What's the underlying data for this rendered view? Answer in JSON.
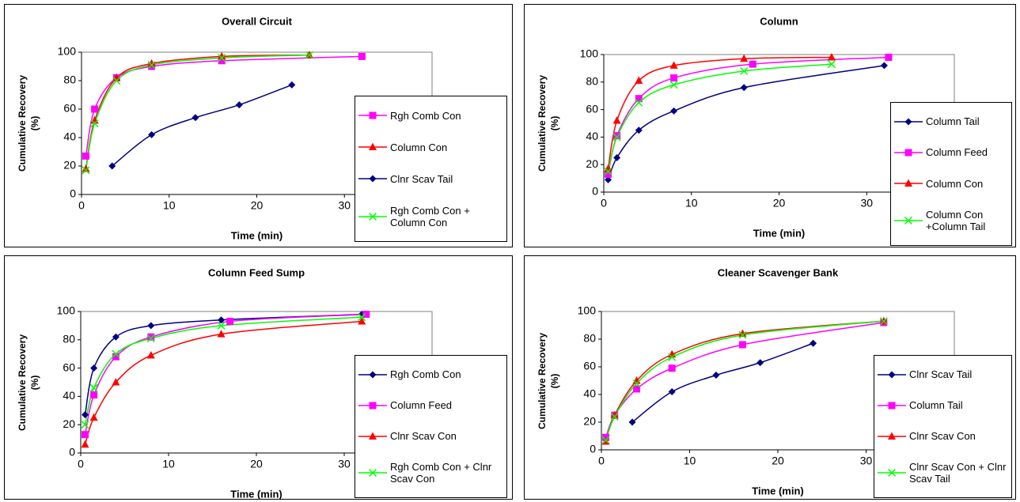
{
  "chart_data": [
    {
      "type": "line",
      "title": "Overall Circuit",
      "x_label": "Time (min)",
      "y_label": "Cumulative Recovery (%)",
      "xlim": [
        0,
        40
      ],
      "xticks": [
        0,
        10,
        20,
        30
      ],
      "ylim": [
        0,
        100
      ],
      "yticks": [
        0,
        20,
        40,
        60,
        80,
        100
      ],
      "series": [
        {
          "name": "Rgh Comb Con",
          "color": "#ff00ff",
          "marker": "square",
          "x": [
            0.5,
            1.5,
            4,
            8,
            16,
            32
          ],
          "values": [
            27,
            60,
            82,
            90,
            94,
            97
          ]
        },
        {
          "name": "Column Con",
          "color": "#ff0000",
          "marker": "triangle",
          "x": [
            0.5,
            1.5,
            4,
            8,
            16,
            26
          ],
          "values": [
            18,
            52,
            82,
            92,
            97,
            98
          ]
        },
        {
          "name": "Clnr Scav Tail",
          "color": "#000080",
          "marker": "diamond",
          "x": [
            3.5,
            8,
            13,
            18,
            24
          ],
          "values": [
            20,
            42,
            54,
            63,
            77
          ]
        },
        {
          "name": "Rgh Comb Con + Column Con",
          "color": "#00ff00",
          "marker": "x",
          "x": [
            0.5,
            1.5,
            4,
            8,
            16,
            26
          ],
          "values": [
            17,
            50,
            80,
            91,
            96,
            98
          ]
        }
      ]
    },
    {
      "type": "line",
      "title": "Column",
      "x_label": "Time (min)",
      "y_label": "Cumulative Recovery (%)",
      "xlim": [
        0,
        40
      ],
      "xticks": [
        0,
        10,
        20,
        30
      ],
      "ylim": [
        0,
        100
      ],
      "yticks": [
        0,
        20,
        40,
        60,
        80,
        100
      ],
      "series": [
        {
          "name": "Column Tail",
          "color": "#000080",
          "marker": "diamond",
          "x": [
            0.5,
            1.5,
            4,
            8,
            16,
            32
          ],
          "values": [
            9,
            25,
            45,
            59,
            76,
            92
          ]
        },
        {
          "name": "Column Feed",
          "color": "#ff00ff",
          "marker": "square",
          "x": [
            0.5,
            1.5,
            4,
            8,
            17,
            32.5
          ],
          "values": [
            13,
            41,
            68,
            83,
            93,
            98
          ]
        },
        {
          "name": "Column Con",
          "color": "#ff0000",
          "marker": "triangle",
          "x": [
            0.5,
            1.5,
            4,
            8,
            16,
            26
          ],
          "values": [
            17,
            52,
            81,
            92,
            97,
            98
          ]
        },
        {
          "name": "Column Con +Column Tail",
          "color": "#00ff00",
          "marker": "x",
          "x": [
            0.5,
            1.5,
            4,
            8,
            16,
            26
          ],
          "values": [
            15,
            40,
            65,
            78,
            88,
            93
          ]
        }
      ]
    },
    {
      "type": "line",
      "title": "Column Feed Sump",
      "x_label": "Time (min)",
      "y_label": "Cumulative Recovery (%)",
      "xlim": [
        0,
        40
      ],
      "xticks": [
        0,
        10,
        20,
        30
      ],
      "ylim": [
        0,
        100
      ],
      "yticks": [
        0,
        20,
        40,
        60,
        80,
        100
      ],
      "series": [
        {
          "name": "Rgh Comb Con",
          "color": "#000080",
          "marker": "diamond",
          "x": [
            0.5,
            1.5,
            4,
            8,
            16,
            32
          ],
          "values": [
            27,
            60,
            82,
            90,
            94,
            98
          ]
        },
        {
          "name": "Column Feed",
          "color": "#ff00ff",
          "marker": "square",
          "x": [
            0.5,
            1.5,
            4,
            8,
            17,
            32.5
          ],
          "values": [
            13,
            41,
            68,
            82,
            93,
            98
          ]
        },
        {
          "name": "Clnr Scav Con",
          "color": "#ff0000",
          "marker": "triangle",
          "x": [
            0.5,
            1.5,
            4,
            8,
            16,
            32
          ],
          "values": [
            6,
            25,
            50,
            69,
            84,
            93
          ]
        },
        {
          "name": "Rgh Comb Con + Clnr Scav Con",
          "color": "#00ff00",
          "marker": "x",
          "x": [
            0.5,
            1.5,
            4,
            8,
            16,
            32
          ],
          "values": [
            20,
            46,
            70,
            81,
            90,
            96
          ]
        }
      ]
    },
    {
      "type": "line",
      "title": "Cleaner Scavenger Bank",
      "x_label": "Time (min)",
      "y_label": "Cumulative Recovery (%)",
      "xlim": [
        0,
        40
      ],
      "xticks": [
        0,
        10,
        20,
        30
      ],
      "ylim": [
        0,
        100
      ],
      "yticks": [
        0,
        20,
        40,
        60,
        80,
        100
      ],
      "series": [
        {
          "name": "Clnr Scav Tail",
          "color": "#000080",
          "marker": "diamond",
          "x": [
            3.5,
            8,
            13,
            18,
            24
          ],
          "values": [
            20,
            42,
            54,
            63,
            77
          ]
        },
        {
          "name": "Column Tail",
          "color": "#ff00ff",
          "marker": "square",
          "x": [
            0.5,
            1.5,
            4,
            8,
            16,
            32
          ],
          "values": [
            9,
            25,
            44,
            59,
            76,
            92
          ]
        },
        {
          "name": "Clnr Scav Con",
          "color": "#ff0000",
          "marker": "triangle",
          "x": [
            0.5,
            1.5,
            4,
            8,
            16,
            32
          ],
          "values": [
            6,
            25,
            50,
            69,
            84,
            93
          ]
        },
        {
          "name": "Clnr Scav Con + Clnr Scav Tail",
          "color": "#00ff00",
          "marker": "x",
          "x": [
            0.5,
            1.5,
            4,
            8,
            16,
            32
          ],
          "values": [
            7,
            24,
            48,
            67,
            83,
            93
          ]
        }
      ]
    }
  ]
}
